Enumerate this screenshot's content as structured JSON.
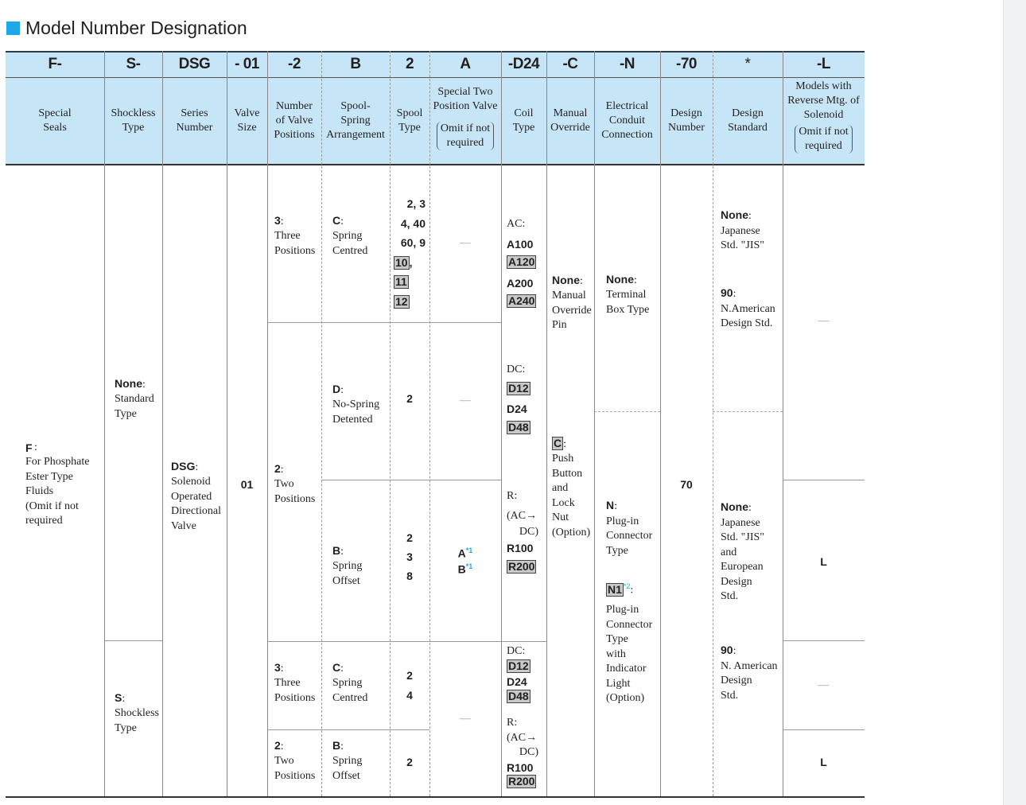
{
  "page": {
    "title": "Model Number Designation"
  },
  "header": {
    "codes": [
      "F-",
      "S-",
      "DSG",
      "- 01",
      "-2",
      "B",
      "2",
      "A",
      "-D24",
      "-C",
      "-N",
      "-70",
      "*",
      "-L"
    ],
    "descriptions": {
      "special_seals": "Special\nSeals",
      "shockless": "Shockless\nType",
      "series": "Series\nNumber",
      "valve_size": "Valve\nSize",
      "valve_positions": "Number\nof Valve\nPositions",
      "spool_spring": "Spool-\nSpring\nArrangement",
      "spool_type": "Spool\nType",
      "special_two_pos": "Special Two\nPosition Valve",
      "coil": "Coil\nType",
      "manual": "Manual\nOverride",
      "conduit": "Electrical\nConduit\nConnection",
      "design_number": "Design\nNumber",
      "design_std": "Design\nStandard",
      "reverse": "Models with\nReverse Mtg. of\nSolenoid"
    },
    "omit_note": "Omit if not\nrequired"
  },
  "body": {
    "special_seals": {
      "code": "F",
      "text": "For Phosphate\nEster Type\nFluids\n(Omit if not\nrequired"
    },
    "shockless_none": {
      "code": "None",
      "text": "Standard\nType"
    },
    "shockless_s": {
      "code": "S",
      "text": "Shockless\nType"
    },
    "series": {
      "code": "DSG",
      "text": "Solenoid\nOperated\nDirectional\nValve"
    },
    "valve_size": "01",
    "positions_three": {
      "code": "3",
      "text": "Three\nPositions"
    },
    "positions_two": {
      "code": "2",
      "text": "Two\nPositions"
    },
    "spring_centred": {
      "code": "C",
      "text": "Spring\nCentred"
    },
    "no_spring": {
      "code": "D",
      "text": "No-Spring\nDetented"
    },
    "spring_offset": {
      "code": "B",
      "text": "Spring\nOffset"
    },
    "spool_types": {
      "row1_a": "2, 3",
      "row1_b": "4, 40",
      "row1_c": "60, 9",
      "row1_boxed": [
        "10",
        "11",
        "12"
      ],
      "row2": "2",
      "row3": [
        "2",
        "3",
        "8"
      ],
      "row4": [
        "2",
        "4"
      ],
      "row5": "2"
    },
    "special_two": {
      "a": "A",
      "b": "B",
      "note": "*1"
    },
    "dash": "—",
    "coil_upper": {
      "ac_label": "AC:",
      "ac": [
        "A100",
        "A120",
        "A200",
        "A240"
      ],
      "dc_label": "DC:",
      "dc": [
        "D12",
        "D24",
        "D48"
      ],
      "r_label": "R:",
      "r_note_a": "(AC→",
      "r_note_b": "DC)",
      "r": [
        "R100",
        "R200"
      ]
    },
    "coil_lower": {
      "dc_label": "DC:",
      "dc": [
        "D12",
        "D24",
        "D48"
      ],
      "r_label": "R:",
      "r_note_a": "(AC→",
      "r_note_b": "DC)",
      "r": [
        "R100",
        "R200"
      ]
    },
    "manual_none": {
      "code": "None",
      "text": "Manual\nOverride\nPin"
    },
    "manual_c": {
      "code": "C",
      "text": "Push\nButton\nand\nLock Nut\n(Option)"
    },
    "conduit_none": {
      "code": "None",
      "text": "Terminal\nBox Type"
    },
    "conduit_n": {
      "code": "N",
      "text": "Plug-in\nConnector\nType"
    },
    "conduit_n1": {
      "code": "N1",
      "note": "*2",
      "text": "Plug-in\nConnector\nType\nwith\nIndicator\nLight\n(Option)"
    },
    "design_number": "70",
    "std_upper_none": {
      "code": "None",
      "text": "Japanese\nStd. \"JIS\""
    },
    "std_upper_90": {
      "code": "90",
      "text": "N.American\nDesign Std."
    },
    "std_lower_none": {
      "code": "None",
      "text": "Japanese\nStd. \"JIS\"\nand\nEuropean\nDesign\nStd."
    },
    "std_lower_90": {
      "code": "90",
      "text": "N. American\nDesign\nStd."
    },
    "reverse_l": "L"
  }
}
